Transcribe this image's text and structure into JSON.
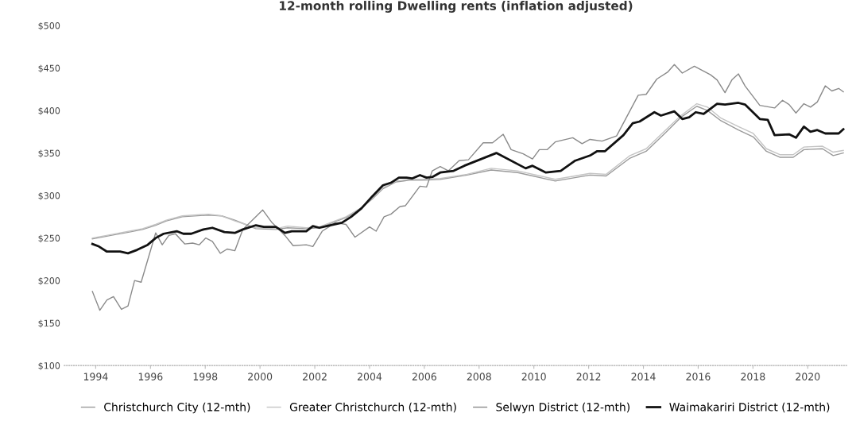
{
  "chart_data": {
    "type": "line",
    "title": "12-month rolling Dwelling rents (inflation adjusted)",
    "xlim": [
      1992.85,
      2021.45
    ],
    "xticks": [
      1994,
      1996,
      1998,
      2000,
      2002,
      2004,
      2006,
      2008,
      2010,
      2012,
      2014,
      2016,
      2018,
      2020
    ],
    "ylim": [
      100,
      500
    ],
    "yticks": [
      {
        "value": 100,
        "label": "$100"
      },
      {
        "value": 150,
        "label": "$150"
      },
      {
        "value": 200,
        "label": "$200"
      },
      {
        "value": 250,
        "label": "$250"
      },
      {
        "value": 300,
        "label": "$300"
      },
      {
        "value": 350,
        "label": "$350"
      },
      {
        "value": 400,
        "label": "$400"
      },
      {
        "value": 450,
        "label": "$450"
      },
      {
        "value": 500,
        "label": "$500"
      }
    ],
    "grid": false,
    "legend": "bottom",
    "marker": "none",
    "line_style": "solid",
    "series": [
      {
        "name": "Christchurch City (12-mth)",
        "color": "#9a9a9a",
        "x": [
          1993.88,
          1994.55,
          1995.23,
          1995.71,
          1996.19,
          1996.58,
          1997.16,
          1998.12,
          1998.6,
          1999.08,
          1999.47,
          1999.85,
          2000.58,
          2001.01,
          2001.69,
          2002.17,
          2002.56,
          2003.14,
          2003.62,
          2004.1,
          2004.49,
          2004.97,
          2005.45,
          2005.93,
          2006.58,
          2007.56,
          2008.44,
          2009.41,
          2010.78,
          2012.05,
          2012.64,
          2013.51,
          2014.1,
          2014.78,
          2015.37,
          2015.95,
          2016.34,
          2016.83,
          2017.47,
          2018.01,
          2018.49,
          2018.98,
          2019.47,
          2019.86,
          2020.54,
          2020.93,
          2021.3
        ],
        "values": [
          249,
          253,
          257,
          260,
          265,
          270,
          275,
          277,
          276,
          271,
          266,
          261,
          260,
          262,
          261,
          262,
          267,
          274,
          283,
          296,
          308,
          316,
          318,
          318,
          319,
          324,
          330,
          327,
          317,
          324,
          323,
          344,
          352,
          373,
          392,
          405,
          400,
          388,
          377,
          369,
          352,
          345,
          345,
          354,
          355,
          347,
          350
        ]
      },
      {
        "name": "Greater Christchurch (12-mth)",
        "color": "#c4c4c4",
        "x": [
          1993.88,
          1994.55,
          1995.23,
          1995.71,
          1996.19,
          1996.58,
          1997.16,
          1998.12,
          1998.6,
          1999.08,
          1999.47,
          1999.85,
          2000.58,
          2001.01,
          2001.69,
          2002.17,
          2002.56,
          2003.14,
          2003.62,
          2004.1,
          2004.49,
          2004.97,
          2005.45,
          2005.93,
          2006.58,
          2007.56,
          2008.44,
          2009.41,
          2010.78,
          2012.05,
          2012.64,
          2013.51,
          2014.1,
          2014.78,
          2015.37,
          2015.95,
          2016.34,
          2016.83,
          2017.47,
          2018.01,
          2018.49,
          2018.98,
          2019.47,
          2019.86,
          2020.54,
          2020.93,
          2021.3
        ],
        "values": [
          250,
          254,
          258,
          261,
          266,
          271,
          276,
          278,
          276,
          270,
          266,
          262,
          261,
          264,
          262,
          263,
          268,
          275,
          284,
          297,
          309,
          317,
          319,
          319,
          320,
          325,
          332,
          329,
          319,
          326,
          325,
          347,
          355,
          376,
          394,
          408,
          404,
          391,
          381,
          373,
          355,
          348,
          348,
          357,
          358,
          351,
          353
        ]
      },
      {
        "name": "Selwyn District (12-mth)",
        "color": "#8a8a8a",
        "x": [
          1993.88,
          1994.15,
          1994.41,
          1994.65,
          1994.94,
          1995.18,
          1995.42,
          1995.66,
          1996.19,
          1996.43,
          1996.67,
          1996.91,
          1997.25,
          1997.54,
          1997.78,
          1998.02,
          1998.26,
          1998.55,
          1998.8,
          1999.08,
          1999.37,
          2000.1,
          2000.44,
          2000.91,
          2001.21,
          2001.69,
          2001.93,
          2002.27,
          2002.75,
          2003.14,
          2003.47,
          2004.0,
          2004.24,
          2004.53,
          2004.78,
          2005.11,
          2005.31,
          2005.84,
          2006.08,
          2006.29,
          2006.58,
          2006.88,
          2007.27,
          2007.61,
          2008.15,
          2008.49,
          2008.88,
          2009.17,
          2009.61,
          2009.95,
          2010.2,
          2010.49,
          2010.78,
          2011.42,
          2011.76,
          2012.05,
          2012.49,
          2013.02,
          2013.81,
          2014.1,
          2014.49,
          2014.88,
          2015.13,
          2015.42,
          2015.86,
          2016.45,
          2016.69,
          2016.98,
          2017.23,
          2017.47,
          2017.71,
          2018.25,
          2018.79,
          2019.08,
          2019.32,
          2019.57,
          2019.86,
          2020.1,
          2020.35,
          2020.64,
          2020.88,
          2021.13,
          2021.3
        ],
        "values": [
          187,
          165,
          177,
          181,
          166,
          170,
          200,
          198,
          256,
          242,
          253,
          255,
          243,
          244,
          242,
          250,
          246,
          232,
          237,
          235,
          260,
          283,
          268,
          253,
          241,
          242,
          240,
          258,
          268,
          266,
          251,
          263,
          258,
          275,
          278,
          287,
          288,
          311,
          310,
          329,
          334,
          329,
          341,
          342,
          362,
          362,
          372,
          354,
          349,
          343,
          354,
          354,
          363,
          368,
          361,
          366,
          364,
          370,
          418,
          419,
          437,
          445,
          454,
          444,
          452,
          442,
          436,
          421,
          436,
          443,
          429,
          406,
          403,
          412,
          407,
          397,
          408,
          404,
          410,
          429,
          423,
          426,
          422
        ]
      },
      {
        "name": "Waimakariri District (12-mth)",
        "color": "#111111",
        "x": [
          1993.88,
          1994.12,
          1994.41,
          1994.89,
          1995.18,
          1995.51,
          1995.9,
          1996.19,
          1996.48,
          1996.96,
          1997.2,
          1997.49,
          1997.93,
          1998.26,
          1998.7,
          1999.08,
          1999.37,
          1999.85,
          2000.14,
          2000.58,
          2000.91,
          2001.16,
          2001.69,
          2001.93,
          2002.17,
          2002.56,
          2002.99,
          2003.33,
          2003.71,
          2004.1,
          2004.49,
          2004.78,
          2005.07,
          2005.35,
          2005.55,
          2005.84,
          2006.08,
          2006.31,
          2006.58,
          2007.07,
          2007.46,
          2008.63,
          2009.7,
          2009.95,
          2010.44,
          2010.98,
          2011.51,
          2012.05,
          2012.3,
          2012.59,
          2013.27,
          2013.61,
          2013.86,
          2014.4,
          2014.64,
          2015.13,
          2015.42,
          2015.67,
          2015.91,
          2016.2,
          2016.69,
          2016.98,
          2017.47,
          2017.71,
          2018.25,
          2018.54,
          2018.79,
          2019.32,
          2019.57,
          2019.86,
          2020.1,
          2020.35,
          2020.64,
          2021.13,
          2021.3
        ],
        "values": [
          243,
          240,
          234,
          234,
          232,
          236,
          242,
          250,
          255,
          258,
          255,
          255,
          260,
          262,
          257,
          256,
          260,
          265,
          263,
          263,
          256,
          258,
          258,
          264,
          262,
          265,
          268,
          275,
          285,
          299,
          312,
          315,
          321,
          321,
          320,
          324,
          321,
          322,
          327,
          329,
          335,
          350,
          332,
          335,
          327,
          329,
          341,
          347,
          352,
          352,
          371,
          385,
          387,
          398,
          394,
          399,
          390,
          392,
          398,
          396,
          408,
          407,
          409,
          407,
          390,
          389,
          371,
          372,
          368,
          381,
          375,
          377,
          373,
          373,
          378
        ]
      }
    ]
  }
}
